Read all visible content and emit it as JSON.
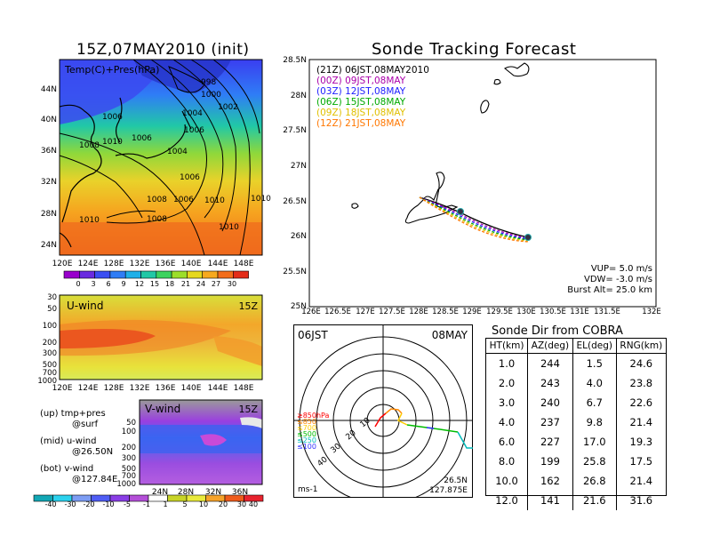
{
  "left": {
    "map_title": "15Z,07MAY2010 (init)",
    "map_label": "Temp(C)+Pres(hPa)",
    "lat_ticks": [
      "44N",
      "40N",
      "36N",
      "32N",
      "28N",
      "24N"
    ],
    "lon_ticks": [
      "120E",
      "124E",
      "128E",
      "132E",
      "136E",
      "140E",
      "144E",
      "148E"
    ],
    "pressure_labels": [
      "998",
      "1000",
      "1002",
      "1004",
      "1006",
      "1006",
      "1006",
      "1008",
      "1010",
      "1004",
      "1006",
      "1010",
      "1010",
      "1008",
      "1010",
      "1008",
      "1006",
      "1010"
    ],
    "temp_colorbar": [
      "0",
      "3",
      "6",
      "9",
      "12",
      "15",
      "18",
      "21",
      "24",
      "27",
      "30"
    ],
    "u_label": "U-wind",
    "u_time": "15Z",
    "u_p_ticks": [
      "30",
      "50",
      "100",
      "200",
      "300",
      "500",
      "700",
      "1000"
    ],
    "v_label": "V-wind",
    "v_time": "15Z",
    "v_p_ticks": [
      "50",
      "100",
      "200",
      "300",
      "500",
      "700",
      "1000"
    ],
    "v_lat_ticks": [
      "24N",
      "28N",
      "32N",
      "36N"
    ],
    "wind_colorbar": [
      "-40",
      "-30",
      "-20",
      "-10",
      "-5",
      "-1",
      "1",
      "5",
      "10",
      "20",
      "30",
      "40"
    ],
    "legend": [
      {
        "line1": "(up) tmp+pres",
        "line2": "@surf"
      },
      {
        "line1": "(mid) u-wind",
        "line2": "@26.50N"
      },
      {
        "line1": "(bot) v-wind",
        "line2": "@127.84E"
      }
    ]
  },
  "tracking": {
    "title": "Sonde Tracking Forecast",
    "lat_ticks": [
      "28.5N",
      "28N",
      "27.5N",
      "27N",
      "26.5N",
      "26N",
      "25.5N",
      "25N"
    ],
    "lon_ticks": [
      "126E",
      "126.5E",
      "127E",
      "127.5E",
      "128E",
      "128.5E",
      "129E",
      "129.5E",
      "130E",
      "130.5E",
      "131E",
      "131.5E",
      "132E"
    ],
    "legend": [
      {
        "text": "(21Z)  06JST,08MAY2010",
        "color": "#000000"
      },
      {
        "text": "(00Z)  09JST,08MAY",
        "color": "#aa00aa"
      },
      {
        "text": "(03Z)  12JST,08MAY",
        "color": "#2020ff"
      },
      {
        "text": "(06Z)  15JST,08MAY",
        "color": "#00aa00"
      },
      {
        "text": "(09Z)  18JST,08MAY",
        "color": "#e0c000"
      },
      {
        "text": "(12Z)  21JST,08MAY",
        "color": "#ff7700"
      }
    ],
    "params": [
      "VUP=  5.0  m/s",
      "VDW=  -3.0  m/s",
      "Burst Alt=  25.0  km"
    ]
  },
  "polar": {
    "time_left": "06JST",
    "time_right": "08MAY",
    "ring_labels": [
      "10",
      "20",
      "30",
      "40"
    ],
    "pressure_legend": [
      {
        "text": "≥850hPa",
        "color": "#ff0000"
      },
      {
        "text": "≤850",
        "color": "#ff8800"
      },
      {
        "text": "≤700",
        "color": "#ffcc00"
      },
      {
        "text": "≤500",
        "color": "#00bb00"
      },
      {
        "text": "≤250",
        "color": "#00bbbb"
      },
      {
        "text": "≤100",
        "color": "#3333ff"
      }
    ],
    "unit": "ms-1",
    "loc_lat": "26.5N",
    "loc_lon": "127.875E"
  },
  "table": {
    "title": "Sonde Dir from COBRA",
    "headers": [
      "HT(km)",
      "AZ(deg)",
      "EL(deg)",
      "RNG(km)"
    ],
    "rows": [
      [
        "1.0",
        "244",
        "1.5",
        "24.6"
      ],
      [
        "2.0",
        "243",
        "4.0",
        "23.8"
      ],
      [
        "3.0",
        "240",
        "6.7",
        "22.6"
      ],
      [
        "4.0",
        "237",
        "9.8",
        "21.4"
      ],
      [
        "6.0",
        "227",
        "17.0",
        "19.3"
      ],
      [
        "8.0",
        "199",
        "25.8",
        "17.5"
      ],
      [
        "10.0",
        "162",
        "26.8",
        "21.4"
      ],
      [
        "12.0",
        "141",
        "21.6",
        "31.6"
      ]
    ]
  },
  "colors": {
    "temp_scale": [
      "#9900cc",
      "#6a2be0",
      "#3a4ef2",
      "#2f7df6",
      "#1fb0e8",
      "#21c8a6",
      "#3dd35e",
      "#9cde2a",
      "#e6d81e",
      "#f7a91e",
      "#f36d1b",
      "#e42c19"
    ],
    "wind_scale": [
      "#12a7b5",
      "#2bd2ee",
      "#7d9df4",
      "#4f5df5",
      "#8a3ee6",
      "#b44fd8",
      "#ffffff",
      "#c8d427",
      "#e9ea3b",
      "#f6a32a",
      "#ef5c1c",
      "#e8232e"
    ]
  }
}
